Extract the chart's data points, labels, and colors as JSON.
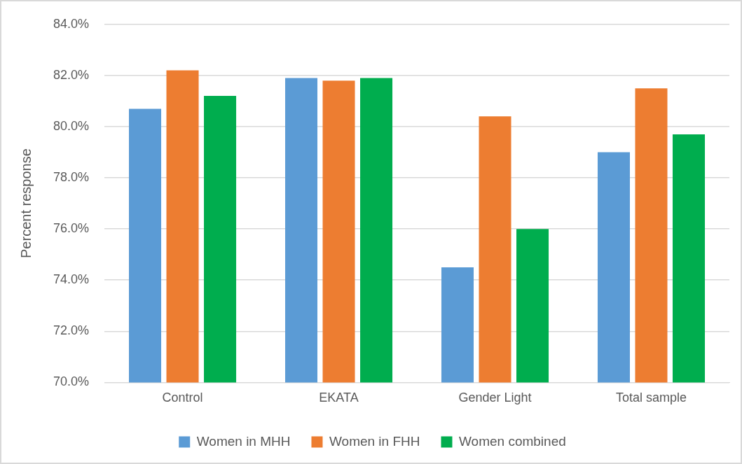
{
  "chart_data": {
    "type": "bar",
    "ylabel": "Percent response",
    "categories": [
      "Control",
      "EKATA",
      "Gender Light",
      "Total sample"
    ],
    "series": [
      {
        "name": "Women in MHH",
        "color": "#5b9bd5",
        "values": [
          80.7,
          81.9,
          74.5,
          79.0
        ]
      },
      {
        "name": "Women in FHH",
        "color": "#ed7d31",
        "values": [
          82.2,
          81.8,
          80.4,
          81.5
        ]
      },
      {
        "name": "Women combined",
        "color": "#00ad4e",
        "values": [
          81.2,
          81.9,
          76.0,
          79.7
        ]
      }
    ],
    "ylim": [
      70,
      84
    ],
    "yticks": [
      {
        "value": 70,
        "label": "70.0%"
      },
      {
        "value": 72,
        "label": "72.0%"
      },
      {
        "value": 74,
        "label": "74.0%"
      },
      {
        "value": 76,
        "label": "76.0%"
      },
      {
        "value": 78,
        "label": "78.0%"
      },
      {
        "value": 80,
        "label": "80.0%"
      },
      {
        "value": 82,
        "label": "82.0%"
      },
      {
        "value": 84,
        "label": "84.0%"
      }
    ],
    "grid": "y",
    "legend": "bottom"
  }
}
